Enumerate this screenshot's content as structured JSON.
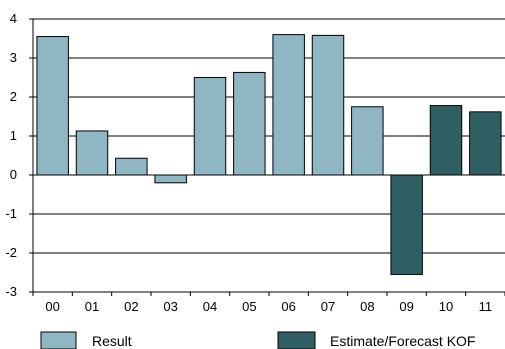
{
  "chart_data": {
    "type": "bar",
    "categories": [
      "00",
      "01",
      "02",
      "03",
      "04",
      "05",
      "06",
      "07",
      "08",
      "09",
      "10",
      "11"
    ],
    "values": [
      3.55,
      1.13,
      0.43,
      -0.2,
      2.5,
      2.63,
      3.6,
      3.58,
      1.75,
      -2.55,
      1.78,
      1.62
    ],
    "bar_series": [
      "Result",
      "Result",
      "Result",
      "Result",
      "Result",
      "Result",
      "Result",
      "Result",
      "Result",
      "Estimate/Forecast KOF",
      "Estimate/Forecast KOF",
      "Estimate/Forecast KOF"
    ],
    "series": [
      {
        "name": "Result",
        "color": "#8fb7c3"
      },
      {
        "name": "Estimate/Forecast KOF",
        "color": "#2f5f63"
      }
    ],
    "ylim": [
      -3,
      4
    ],
    "yticks": [
      "4",
      "3",
      "2",
      "1",
      "0",
      "-1",
      "-2",
      "-3"
    ],
    "grid": true,
    "legend_position": "bottom",
    "title": "",
    "xlabel": "",
    "ylabel": ""
  }
}
